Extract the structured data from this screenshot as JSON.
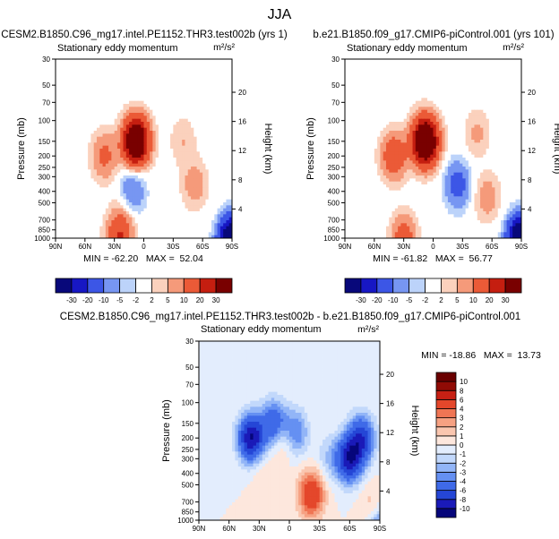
{
  "page_title": "JJA",
  "chart_data": [
    {
      "type": "heatmap",
      "panel": "model",
      "title": "CESM2.B1850.C96_mg17.intel.PE1152.THR3.test002b (yrs 1)",
      "subtitle": "Stationary eddy momentum",
      "units": "m²/s²",
      "ylabel": "Pressure (mb)",
      "ylabel_right": "Height (km)",
      "x_ticks": [
        "90N",
        "60N",
        "30N",
        "0",
        "30S",
        "60S",
        "90S"
      ],
      "y_ticks": [
        "30",
        "50",
        "70",
        "100",
        "150",
        "200",
        "250",
        "300",
        "400",
        "500",
        "700",
        "850",
        "1000"
      ],
      "height_ticks": [
        "20",
        "16",
        "12",
        "8",
        "4"
      ],
      "stats": "MIN = -62.20   MAX =  52.04",
      "min": -62.2,
      "max": 52.04,
      "levels": [
        "-30",
        "-20",
        "-10",
        "-5",
        "-2",
        "2",
        "5",
        "10",
        "20",
        "30"
      ],
      "features": [
        {
          "lat": 8,
          "p": 150,
          "value": 52
        },
        {
          "lat": 20,
          "p": 600,
          "value": 5
        },
        {
          "lat": 40,
          "p": 200,
          "value": 12
        },
        {
          "lat": 12,
          "p": 400,
          "value": -12
        },
        {
          "lat": -52,
          "p": 350,
          "value": 8
        },
        {
          "lat": -40,
          "p": 150,
          "value": 5
        },
        {
          "lat": 25,
          "p": 1000,
          "value": 20
        },
        {
          "lat": -85,
          "p": 900,
          "value": 15
        },
        {
          "lat": -88,
          "p": 1000,
          "value": -62
        }
      ]
    },
    {
      "type": "heatmap",
      "panel": "control",
      "title": "b.e21.B1850.f09_g17.CMIP6-piControl.001 (yrs 101)",
      "subtitle": "Stationary eddy momentum",
      "units": "m²/s²",
      "ylabel": "Pressure (mb)",
      "ylabel_right": "Height (km)",
      "x_ticks": [
        "90N",
        "60N",
        "30N",
        "0",
        "30S",
        "60S",
        "90S"
      ],
      "y_ticks": [
        "30",
        "50",
        "70",
        "100",
        "150",
        "200",
        "250",
        "300",
        "400",
        "500",
        "700",
        "850",
        "1000"
      ],
      "height_ticks": [
        "20",
        "16",
        "12",
        "8",
        "4"
      ],
      "stats": "MIN = -61.82   MAX =  56.77",
      "min": -61.82,
      "max": 56.77,
      "levels": [
        "-30",
        "-20",
        "-10",
        "-5",
        "-2",
        "2",
        "5",
        "10",
        "20",
        "30"
      ],
      "features": [
        {
          "lat": 8,
          "p": 150,
          "value": 56
        },
        {
          "lat": 40,
          "p": 200,
          "value": 18
        },
        {
          "lat": -45,
          "p": 130,
          "value": 6
        },
        {
          "lat": -25,
          "p": 350,
          "value": -14
        },
        {
          "lat": -55,
          "p": 450,
          "value": 8
        },
        {
          "lat": 30,
          "p": 1000,
          "value": 15
        },
        {
          "lat": -85,
          "p": 900,
          "value": 12
        },
        {
          "lat": -88,
          "p": 1000,
          "value": -61
        }
      ]
    },
    {
      "type": "heatmap",
      "panel": "difference",
      "title": "CESM2.B1850.C96_mg17.intel.PE1152.THR3.test002b - b.e21.B1850.f09_g17.CMIP6-piControl.001",
      "subtitle": "Stationary eddy momentum",
      "units": "m²/s²",
      "ylabel": "Pressure (mb)",
      "ylabel_right": "Height (km)",
      "x_ticks": [
        "90N",
        "60N",
        "30N",
        "0",
        "30S",
        "60S",
        "90S"
      ],
      "y_ticks": [
        "30",
        "50",
        "70",
        "100",
        "150",
        "200",
        "250",
        "300",
        "400",
        "500",
        "700",
        "850",
        "1000"
      ],
      "height_ticks": [
        "20",
        "16",
        "12",
        "8",
        "4"
      ],
      "stats": "MIN = -18.86   MAX =  13.73",
      "min": -18.86,
      "max": 13.73,
      "levels": [
        "-10",
        "-8",
        "-6",
        "-4",
        "-3",
        "-2",
        "-1",
        "0",
        "1",
        "2",
        "3",
        "4",
        "6",
        "8",
        "10"
      ],
      "features": [
        {
          "lat": 38,
          "p": 200,
          "value": -10
        },
        {
          "lat": 15,
          "p": 150,
          "value": -6
        },
        {
          "lat": 5,
          "p": 200,
          "value": 3
        },
        {
          "lat": -5,
          "p": 180,
          "value": -5
        },
        {
          "lat": -22,
          "p": 600,
          "value": 6
        },
        {
          "lat": -60,
          "p": 300,
          "value": -9
        },
        {
          "lat": -72,
          "p": 200,
          "value": -7
        },
        {
          "lat": -40,
          "p": 300,
          "value": -2
        },
        {
          "lat": 25,
          "p": 400,
          "value": 1
        },
        {
          "lat": -85,
          "p": 900,
          "value": 8
        },
        {
          "lat": -87,
          "p": 1000,
          "value": -10
        }
      ]
    }
  ],
  "colors": {
    "palette_10": [
      "#08087a",
      "#1717c4",
      "#3c56e6",
      "#7796f2",
      "#bcd3fa",
      "#ffffff",
      "#fbd1bd",
      "#f59a7a",
      "#eb5a37",
      "#c51e10",
      "#790000"
    ],
    "palette_15": [
      "#06067a",
      "#1a1ab8",
      "#2546d6",
      "#3f6ae8",
      "#6590f2",
      "#92b5f7",
      "#c2d8fb",
      "#e3edfd",
      "#fde7dd",
      "#fac6af",
      "#f6a182",
      "#ef7554",
      "#e4472b",
      "#c72014",
      "#900b05",
      "#6a0000"
    ]
  }
}
